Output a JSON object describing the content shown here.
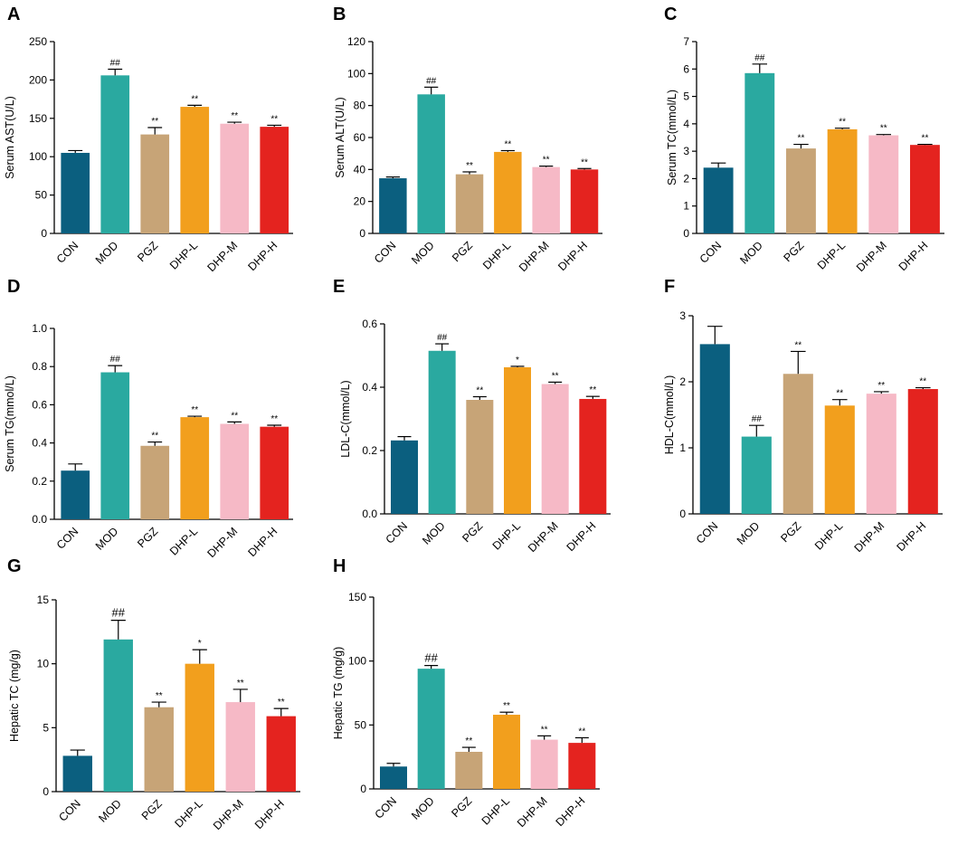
{
  "colors": {
    "CON": "#0b5f7f",
    "MOD": "#2aa9a0",
    "PGZ": "#c7a477",
    "DHP-L": "#f29f1d",
    "DHP-M": "#f6b9c6",
    "DHP-H": "#e4231f"
  },
  "chart_data": [
    {
      "type": "bar",
      "letter": "A",
      "ylabel": "Serum AST(U/L)",
      "categories": [
        "CON",
        "MOD",
        "PGZ",
        "DHP-L",
        "DHP-M",
        "DHP-H"
      ],
      "values": [
        105,
        206,
        129,
        165,
        143,
        139
      ],
      "errors": [
        3,
        8,
        9,
        2,
        2,
        2
      ],
      "significance": [
        "",
        "##",
        "**",
        "**",
        "**",
        "**"
      ],
      "ylim": [
        0,
        250
      ],
      "yticks": [
        0,
        50,
        100,
        150,
        200,
        250
      ]
    },
    {
      "type": "bar",
      "letter": "B",
      "ylabel": "Serum ALT(U/L)",
      "categories": [
        "CON",
        "MOD",
        "PGZ",
        "DHP-L",
        "DHP-M",
        "DHP-H"
      ],
      "values": [
        34.5,
        87,
        37,
        51,
        41.5,
        40
      ],
      "errors": [
        0.8,
        4.5,
        1.5,
        0.8,
        0.6,
        0.6
      ],
      "significance": [
        "",
        "##",
        "**",
        "**",
        "**",
        "**"
      ],
      "ylim": [
        0,
        120
      ],
      "yticks": [
        0,
        20,
        40,
        60,
        80,
        100,
        120
      ]
    },
    {
      "type": "bar",
      "letter": "C",
      "ylabel": "Serum TC(mmol/L)",
      "categories": [
        "CON",
        "MOD",
        "PGZ",
        "DHP-L",
        "DHP-M",
        "DHP-H"
      ],
      "values": [
        2.4,
        5.85,
        3.1,
        3.8,
        3.58,
        3.23
      ],
      "errors": [
        0.17,
        0.33,
        0.15,
        0.04,
        0.03,
        0.02
      ],
      "significance": [
        "",
        "##",
        "**",
        "**",
        "**",
        "**"
      ],
      "ylim": [
        0,
        7
      ],
      "yticks": [
        0,
        1,
        2,
        3,
        4,
        5,
        6,
        7
      ]
    },
    {
      "type": "bar",
      "letter": "D",
      "ylabel": "Serum TG(mmol/L)",
      "categories": [
        "CON",
        "MOD",
        "PGZ",
        "DHP-L",
        "DHP-M",
        "DHP-H"
      ],
      "values": [
        0.255,
        0.77,
        0.385,
        0.535,
        0.5,
        0.485
      ],
      "errors": [
        0.035,
        0.035,
        0.02,
        0.005,
        0.01,
        0.008
      ],
      "significance": [
        "",
        "##",
        "**",
        "**",
        "**",
        "**"
      ],
      "ylim": [
        0,
        1.0
      ],
      "yticks": [
        0,
        0.2,
        0.4,
        0.6,
        0.8,
        1.0
      ]
    },
    {
      "type": "bar",
      "letter": "E",
      "ylabel": "LDL-C(mmol/L)",
      "categories": [
        "CON",
        "MOD",
        "PGZ",
        "DHP-L",
        "DHP-M",
        "DHP-H"
      ],
      "values": [
        0.232,
        0.515,
        0.36,
        0.463,
        0.41,
        0.363
      ],
      "errors": [
        0.012,
        0.022,
        0.01,
        0.003,
        0.006,
        0.008
      ],
      "significance": [
        "",
        "##",
        "**",
        "*",
        "**",
        "**"
      ],
      "ylim": [
        0,
        0.6
      ],
      "yticks": [
        0,
        0.2,
        0.4,
        0.6
      ]
    },
    {
      "type": "bar",
      "letter": "F",
      "ylabel": "HDL-C(mmol/L)",
      "categories": [
        "CON",
        "MOD",
        "PGZ",
        "DHP-L",
        "DHP-M",
        "DHP-H"
      ],
      "values": [
        2.57,
        1.17,
        2.12,
        1.64,
        1.82,
        1.89
      ],
      "errors": [
        0.27,
        0.17,
        0.34,
        0.09,
        0.03,
        0.02
      ],
      "significance": [
        "",
        "##",
        "**",
        "**",
        "**",
        "**"
      ],
      "ylim": [
        0,
        3
      ],
      "yticks": [
        0,
        1,
        2,
        3
      ]
    },
    {
      "type": "bar",
      "letter": "G",
      "ylabel": "Hepatic TC (mg/g)",
      "categories": [
        "CON",
        "MOD",
        "PGZ",
        "DHP-L",
        "DHP-M",
        "DHP-H"
      ],
      "values": [
        2.8,
        11.9,
        6.6,
        10.0,
        7.0,
        5.9
      ],
      "errors": [
        0.45,
        1.5,
        0.4,
        1.1,
        1.0,
        0.6
      ],
      "significance": [
        "",
        "##",
        "**",
        "*",
        "**",
        "**"
      ],
      "ylim": [
        0,
        15
      ],
      "yticks": [
        0,
        5,
        10,
        15
      ]
    },
    {
      "type": "bar",
      "letter": "H",
      "ylabel": "Hepatic TG (mg/g)",
      "categories": [
        "CON",
        "MOD",
        "PGZ",
        "DHP-L",
        "DHP-M",
        "DHP-H"
      ],
      "values": [
        17.5,
        94,
        29,
        58,
        38.5,
        36
      ],
      "errors": [
        2.5,
        2.5,
        3.5,
        2,
        3,
        4
      ],
      "significance": [
        "",
        "##",
        "**",
        "**",
        "**",
        "**"
      ],
      "ylim": [
        0,
        150
      ],
      "yticks": [
        0,
        50,
        100,
        150
      ]
    }
  ]
}
